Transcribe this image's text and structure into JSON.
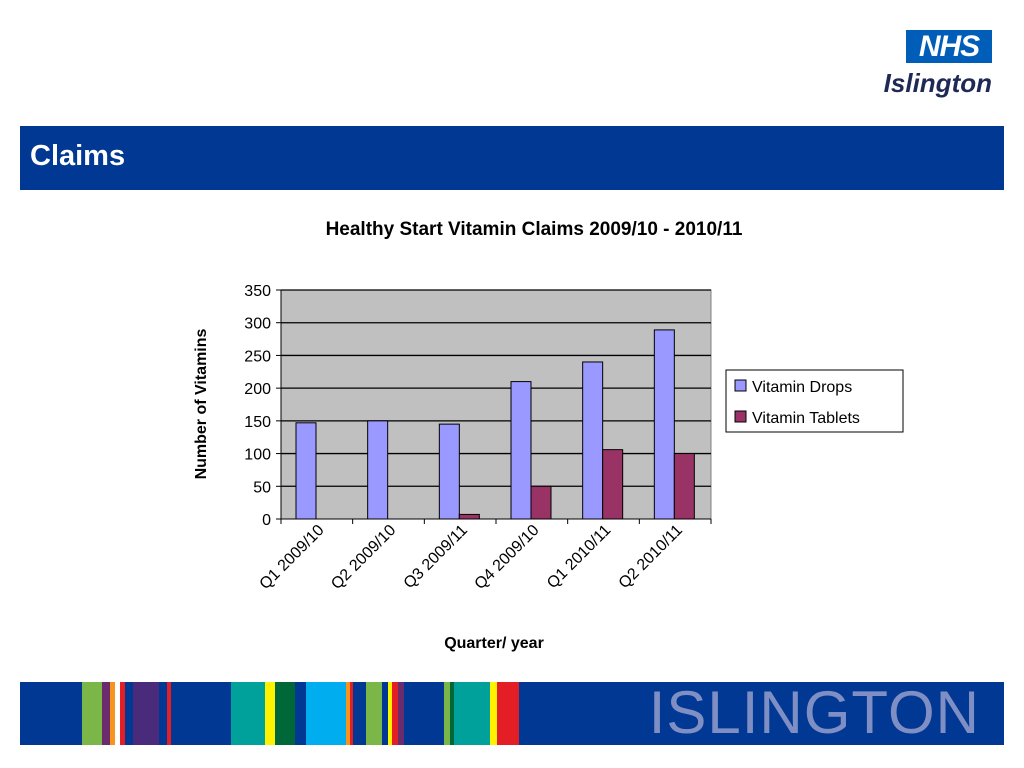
{
  "logo": {
    "nhs": "NHS",
    "org": "Islington"
  },
  "header": {
    "title": "Claims"
  },
  "footer": {
    "word": "ISLINGTON"
  },
  "colors": {
    "bar_blue": "#003893",
    "drops": "#9999ff",
    "tablets": "#993366",
    "plot_bg": "#c0c0c0"
  },
  "chart_data": {
    "type": "bar",
    "title": "Healthy Start Vitamin Claims 2009/10 - 2010/11",
    "xlabel": "Quarter/ year",
    "ylabel": "Number of Vitamins",
    "ylim": [
      0,
      350
    ],
    "yticks": [
      0,
      50,
      100,
      150,
      200,
      250,
      300,
      350
    ],
    "categories": [
      "Q1 2009/10",
      "Q2 2009/10",
      "Q3 2009/11",
      "Q4 2009/10",
      "Q1 2010/11",
      "Q2 2010/11"
    ],
    "series": [
      {
        "name": "Vitamin Drops",
        "values": [
          147,
          150,
          145,
          210,
          240,
          289
        ]
      },
      {
        "name": "Vitamin Tablets",
        "values": [
          0,
          0,
          7,
          50,
          106,
          100
        ]
      }
    ],
    "grid": true,
    "legend": "right"
  }
}
